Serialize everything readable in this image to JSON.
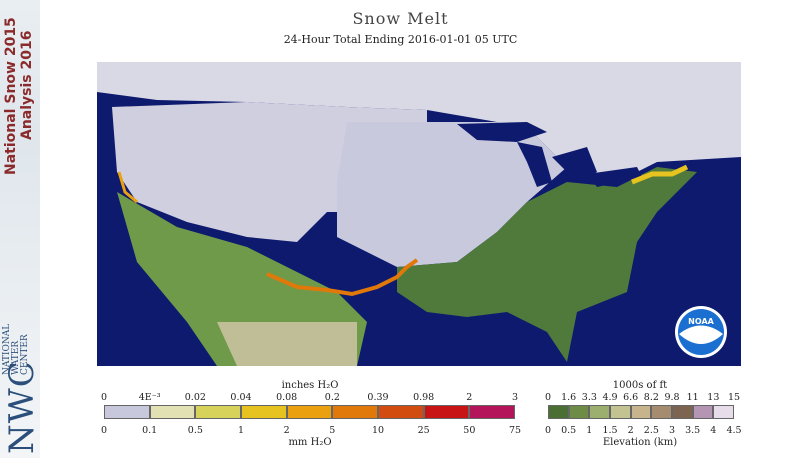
{
  "banner": {
    "line1": "National Snow 2015",
    "line2": "Analysis 2016",
    "org_abbrev": "NWC",
    "org_name": [
      "NATIONAL",
      "WATER",
      "CENTER"
    ]
  },
  "title": "Snow Melt",
  "subtitle": "24-Hour Total Ending 2016-01-01 05 UTC",
  "logo": {
    "text": "NOAA"
  },
  "melt_legend": {
    "top_title": "inches H₂O",
    "bottom_title": "mm H₂O",
    "inch_ticks": [
      "0",
      "4E⁻³",
      "0.02",
      "0.04",
      "0.08",
      "0.2",
      "0.39",
      "0.98",
      "2",
      "3"
    ],
    "mm_ticks": [
      "0",
      "0.1",
      "0.5",
      "1",
      "2",
      "5",
      "10",
      "25",
      "50",
      "75"
    ],
    "colors": [
      "#c8c8dc",
      "#e1e1b4",
      "#d7d25a",
      "#e6c31e",
      "#eba00f",
      "#e1780a",
      "#d24b0f",
      "#c81414",
      "#b4145a"
    ]
  },
  "elevation_legend": {
    "top_title": "1000s of ft",
    "bottom_title": "Elevation (km)",
    "ft_ticks": [
      "0",
      "1.6",
      "3.3",
      "4.9",
      "6.6",
      "8.2",
      "9.8",
      "11",
      "13",
      "15"
    ],
    "km_ticks": [
      "0",
      "0.5",
      "1",
      "1.5",
      "2",
      "2.5",
      "3",
      "3.5",
      "4",
      "4.5"
    ],
    "colors": [
      "#4b6e32",
      "#6e8c46",
      "#9caf6e",
      "#c3c391",
      "#c8b48c",
      "#a58c6e",
      "#7d6450",
      "#b496b4",
      "#e6dcea"
    ]
  }
}
